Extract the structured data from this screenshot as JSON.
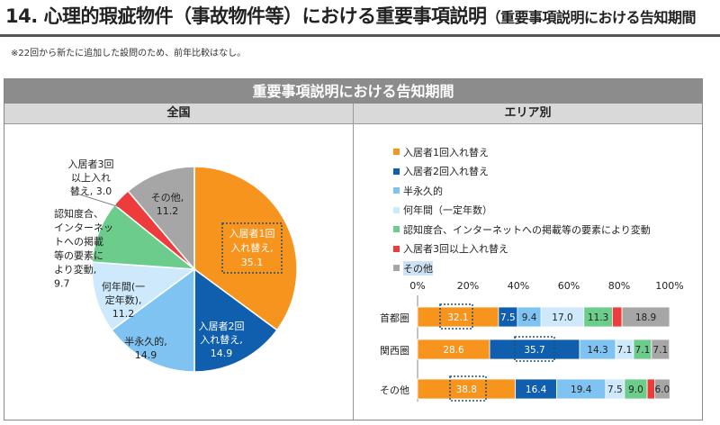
{
  "header": {
    "title": "14. 心理的瑕疵物件（事故物件等）における重要事項説明",
    "subtitle": "（重要事項説明における告知期間",
    "note": "※22回から新たに追加した設問のため、前年比較はなし。"
  },
  "chart_data": [
    {
      "type": "pie",
      "title": "重要事項説明における告知期間",
      "panel": "全国",
      "slices": [
        {
          "label": "入居者1回入れ替え",
          "value": 35.1,
          "color": "#f7941d"
        },
        {
          "label": "入居者2回入れ替え",
          "value": 14.9,
          "color": "#0f5fae"
        },
        {
          "label": "半永久的",
          "value": 14.9,
          "color": "#7ec3f2"
        },
        {
          "label": "何年間（一定年数）",
          "value": 11.2,
          "color": "#cde9fb"
        },
        {
          "label": "認知度合、インターネットへの掲載等の要素により変動",
          "value": 9.7,
          "color": "#6ccc8c"
        },
        {
          "label": "入居者3回以上入れ替え",
          "value": 3.0,
          "color": "#ee3b3b"
        },
        {
          "label": "その他",
          "value": 11.2,
          "color": "#a6a6a6"
        }
      ],
      "slice_labels": [
        [
          "入居者1回",
          "入れ替え,",
          "35.1"
        ],
        [
          "入居者2回",
          "入れ替え,",
          "14.9"
        ],
        [
          "半永久的,",
          "14.9"
        ],
        [
          "何年間(一",
          "定年数),",
          "11.2"
        ],
        [
          "認知度合、",
          "インターネッ",
          "トへの掲載",
          "等の要素に",
          "より変動,",
          "9.7"
        ],
        [
          "入居者3回",
          "以上入れ",
          "替え, 3.0"
        ],
        [
          "その他,",
          "11.2"
        ]
      ]
    },
    {
      "type": "bar",
      "orientation": "horizontal-stacked-100",
      "panel": "エリア別",
      "categories": [
        "首都圏",
        "関西圏",
        "その他"
      ],
      "series": [
        {
          "name": "入居者1回入れ替え",
          "color": "#f7941d",
          "values": [
            32.1,
            28.6,
            38.8
          ]
        },
        {
          "name": "入居者2回入れ替え",
          "color": "#0f5fae",
          "values": [
            7.5,
            35.7,
            16.4
          ]
        },
        {
          "name": "半永久的",
          "color": "#7ec3f2",
          "values": [
            9.4,
            14.3,
            19.4
          ]
        },
        {
          "name": "何年間（一定年数）",
          "color": "#cde9fb",
          "values": [
            17.0,
            7.1,
            7.5
          ]
        },
        {
          "name": "認知度合、インターネットへの掲載等の要素により変動",
          "color": "#6ccc8c",
          "values": [
            11.3,
            7.1,
            9.0
          ]
        },
        {
          "name": "入居者3回以上入れ替え",
          "color": "#ee3b3b",
          "values": [
            3.8,
            0.0,
            3.0
          ]
        },
        {
          "name": "その他",
          "color": "#a6a6a6",
          "values": [
            18.9,
            7.1,
            6.0
          ]
        }
      ],
      "data_labels": [
        [
          "32.1",
          "7.5",
          "9.4",
          "17.0",
          "11.3",
          "",
          "18.9"
        ],
        [
          "28.6",
          "35.7",
          "14.3",
          "7.1",
          "7.1",
          "",
          "7.1"
        ],
        [
          "38.8",
          "16.4",
          "19.4",
          "7.5",
          "9.0",
          "",
          "6.0"
        ]
      ],
      "xlim": [
        0,
        100
      ],
      "xticks": [
        "0%",
        "20%",
        "40%",
        "60%",
        "80%",
        "100%"
      ],
      "legend": "top",
      "grid": false
    }
  ],
  "panels": {
    "left_header": "全国",
    "right_header": "エリア別"
  }
}
